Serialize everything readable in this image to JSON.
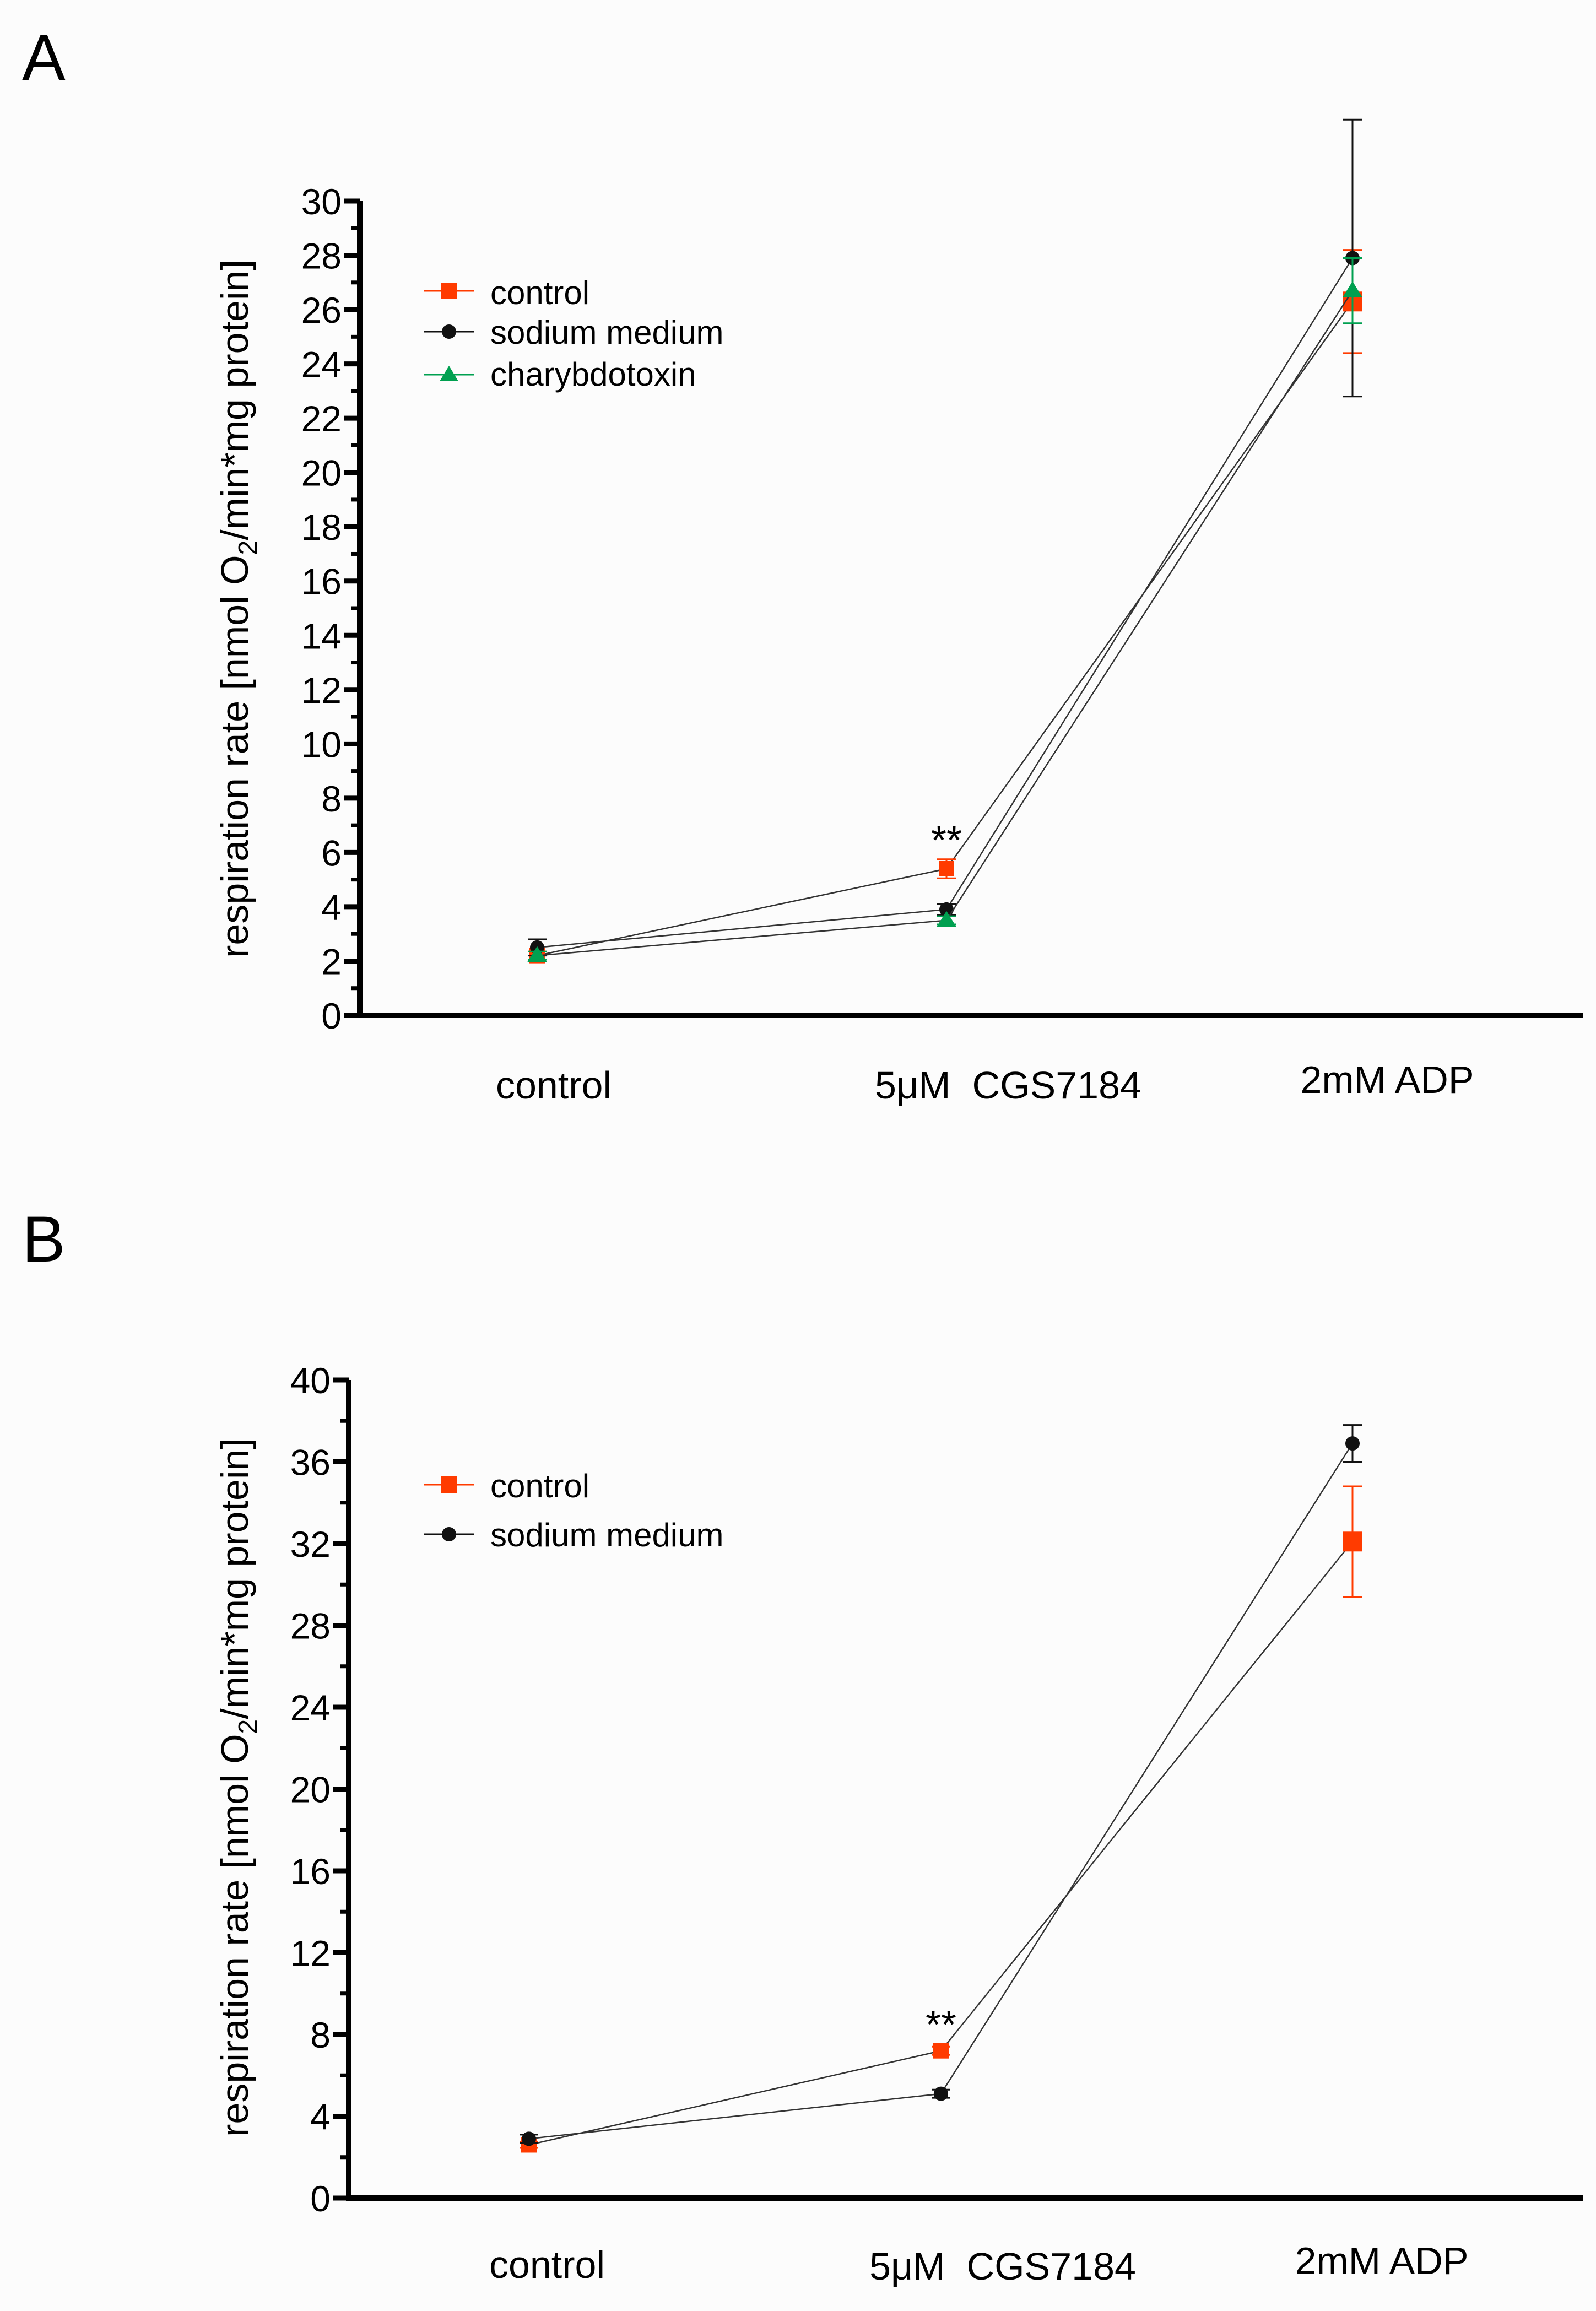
{
  "chart_data": [
    {
      "panel_label": "A",
      "type": "line",
      "ylabel_main": "respiration rate [nmol O",
      "ylabel_sub": "2",
      "ylabel_tail": "/min*mg protein]",
      "ylim": [
        0,
        30
      ],
      "yticks": [
        "0",
        "2",
        "4",
        "6",
        "8",
        "10",
        "12",
        "14",
        "16",
        "18",
        "20",
        "22",
        "24",
        "26",
        "28",
        "30"
      ],
      "categories": [
        "control",
        "5μM  CGS7184",
        "2mM ADP"
      ],
      "annotation": "**",
      "series": [
        {
          "name": "control",
          "color": "#ff3b00",
          "marker": "square",
          "values": [
            2.2,
            5.4,
            26.3
          ],
          "errors": [
            0.15,
            0.35,
            1.9
          ]
        },
        {
          "name": "sodium medium",
          "color": "#111111",
          "marker": "circle",
          "values": [
            2.5,
            3.9,
            27.9
          ],
          "errors": [
            0.3,
            0.2,
            5.1
          ]
        },
        {
          "name": "charybdotoxin",
          "color": "#00a050",
          "marker": "triangle",
          "values": [
            2.2,
            3.5,
            26.7
          ],
          "errors": [
            0.15,
            0.15,
            1.2
          ]
        }
      ]
    },
    {
      "panel_label": "B",
      "type": "line",
      "ylabel_main": "respiration rate [nmol O",
      "ylabel_sub": "2",
      "ylabel_tail": "/min*mg protein]",
      "ylim": [
        0,
        40
      ],
      "yticks": [
        "0",
        "4",
        "8",
        "12",
        "16",
        "20",
        "24",
        "28",
        "32",
        "36",
        "40"
      ],
      "categories": [
        "control",
        "5μM  CGS7184",
        "2mM ADP"
      ],
      "annotation": "**",
      "series": [
        {
          "name": "control",
          "color": "#ff3b00",
          "marker": "square",
          "values": [
            2.6,
            7.2,
            32.1
          ],
          "errors": [
            0.15,
            0.2,
            2.7
          ]
        },
        {
          "name": "sodium medium",
          "color": "#111111",
          "marker": "circle",
          "values": [
            2.9,
            5.1,
            36.9
          ],
          "errors": [
            0.2,
            0.2,
            0.9
          ]
        }
      ]
    }
  ]
}
